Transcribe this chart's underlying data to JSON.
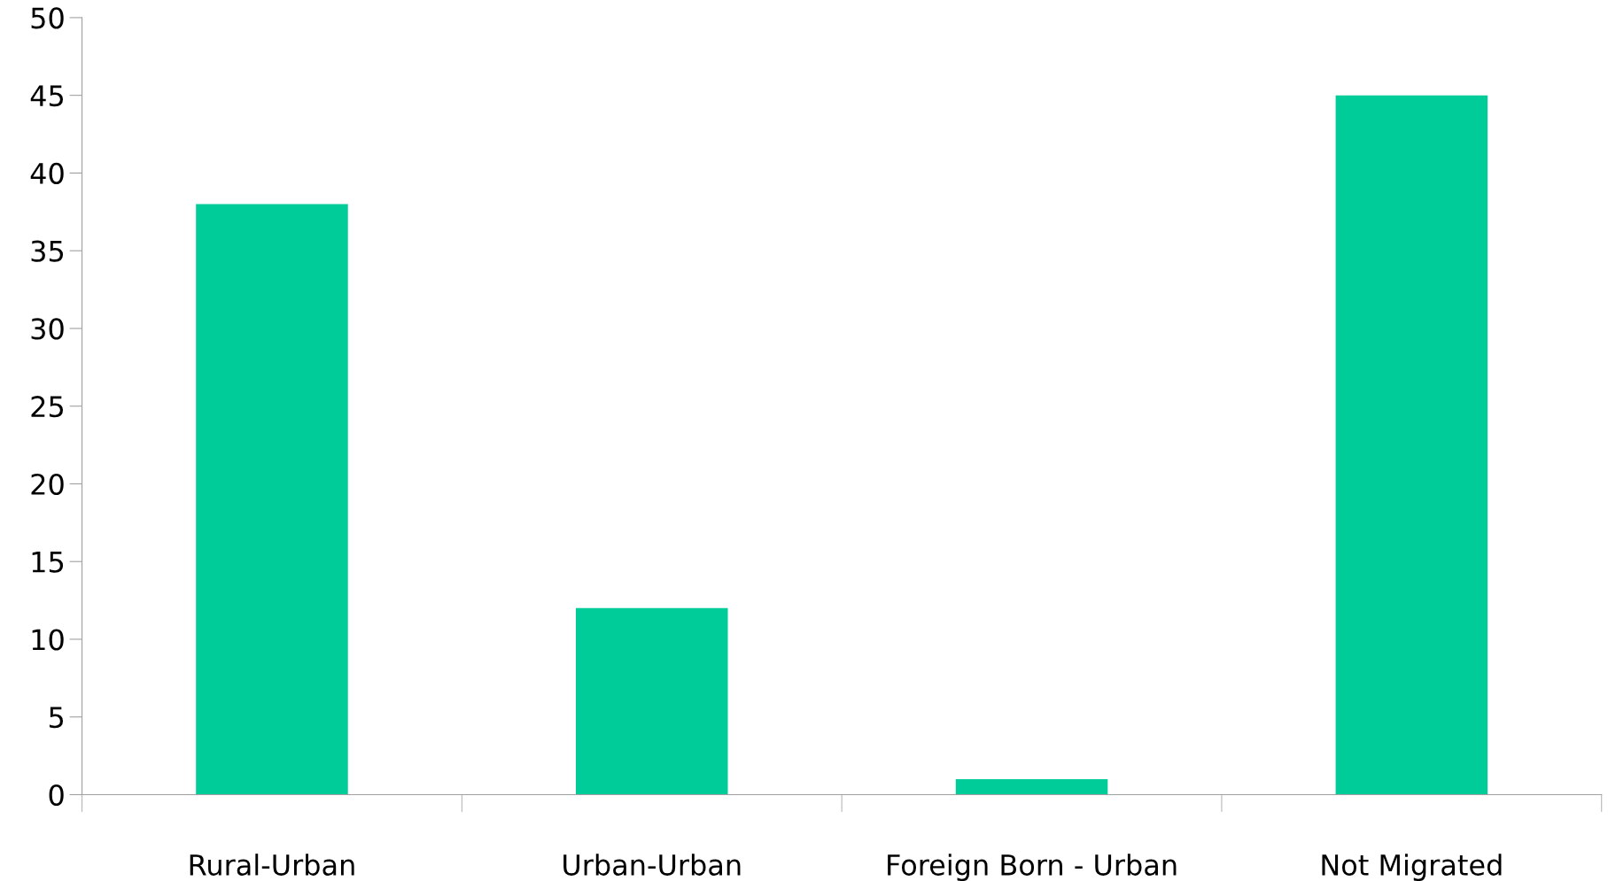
{
  "chart_data": {
    "type": "bar",
    "categories": [
      "Rural-Urban",
      "Urban-Urban",
      "Foreign Born - Urban",
      "Not Migrated"
    ],
    "values": [
      38,
      12,
      1,
      45
    ],
    "color": "#00cc99",
    "ylim": [
      0,
      50
    ],
    "yticks": [
      0,
      5,
      10,
      15,
      20,
      25,
      30,
      35,
      40,
      45,
      50
    ],
    "grid": false,
    "legend": false
  }
}
